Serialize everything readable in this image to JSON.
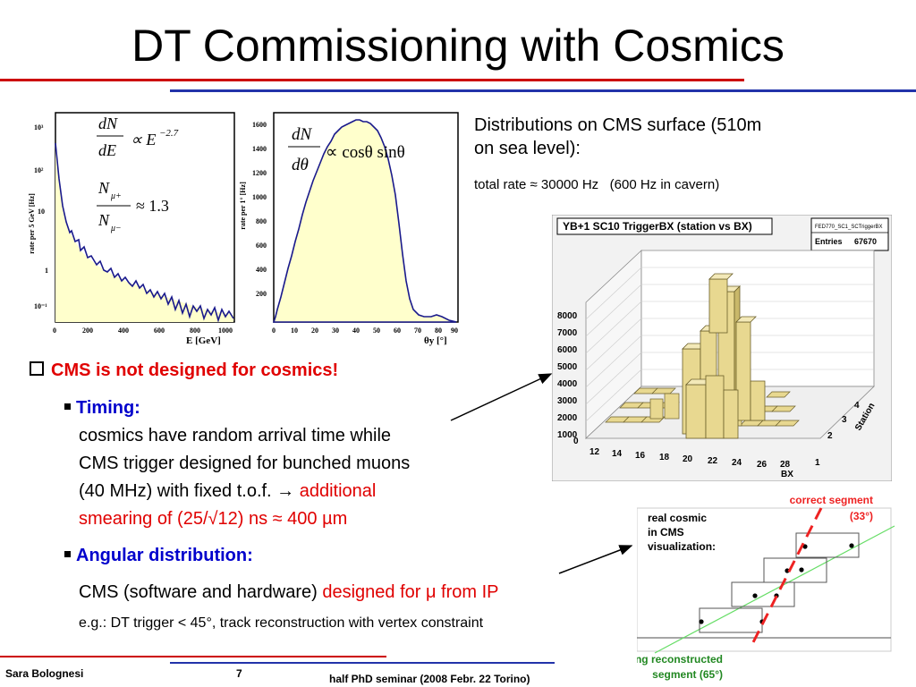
{
  "slide": {
    "title": "DT Commissioning with Cosmics",
    "right_text": {
      "line1": "Distributions on CMS surface (510m",
      "line2": "on sea level):",
      "rate": "total rate ≈ 30000 Hz   (600 Hz in cavern)"
    },
    "bullets": {
      "main": "CMS is not designed for cosmics!",
      "timing_label": "Timing:",
      "timing_lines": [
        "cosmics have random arrival time while",
        "CMS trigger designed for bunched muons",
        "(40 MHz) with fixed t.o.f. → "
      ],
      "timing_red_1": "additional",
      "timing_red_2": "smearing of (25/√12) ns ≈ 400 µm",
      "angular_label": "Angular distribution:",
      "angular_text": "CMS (software and hardware) ",
      "angular_red": "designed for μ from IP",
      "eg": "e.g.: DT trigger < 45°, track reconstruction with vertex constraint"
    },
    "footer": {
      "author": "Sara Bolognesi",
      "page": "7",
      "event": "half PhD seminar (2008 Febr. 22 Torino)"
    },
    "colors": {
      "red_line": "#cc0000",
      "blue_line": "#2233aa",
      "hist_fill": "#ffffcc",
      "hist_line": "#1a1a8c",
      "lego_fill": "#e8d890"
    }
  },
  "energy_hist": {
    "ylabel": "rate per 5 GeV [Hz]",
    "xlabel": "E [GeV]",
    "xticks": [
      "0",
      "200",
      "400",
      "600",
      "800",
      "1000"
    ],
    "yticks": [
      "10³",
      "10²",
      "10",
      "1",
      "10⁻¹"
    ],
    "formula1_lhs_num": "dN",
    "formula1_lhs_den": "dE",
    "formula1_rhs": "∝ E",
    "formula1_exp": "−2.7",
    "formula2_num": "N",
    "formula2_num_sub": "μ+",
    "formula2_den": "N",
    "formula2_den_sub": "μ−",
    "formula2_rhs": "≈ 1.3"
  },
  "angle_hist": {
    "ylabel": "rate per 1° [Hz]",
    "xlabel": "θy [°]",
    "xticks": [
      "0",
      "10",
      "20",
      "30",
      "40",
      "50",
      "60",
      "70",
      "80",
      "90"
    ],
    "yticks": [
      "1600",
      "1400",
      "1200",
      "1000",
      "800",
      "600",
      "400",
      "200"
    ],
    "formula_num": "dN",
    "formula_den": "dθ",
    "formula_rhs": "∝ cosθ sinθ"
  },
  "lego": {
    "title": "YB+1 SC10 TriggerBX (station vs BX)",
    "stats_name": "FED770_SC1_SCTriggerBX",
    "entries_label": "Entries",
    "entries_value": "67670",
    "zticks": [
      "8000",
      "7000",
      "6000",
      "5000",
      "4000",
      "3000",
      "2000",
      "1000",
      "0"
    ],
    "xticks": [
      "12",
      "14",
      "16",
      "18",
      "20",
      "22",
      "24",
      "26",
      "28"
    ],
    "xunit": "BX",
    "yticks": [
      "1",
      "2",
      "3",
      "4"
    ],
    "yunit": "Station"
  },
  "segment_diagram": {
    "correct_label_1": "correct segment",
    "correct_label_2": "(33°)",
    "cosmic_label_1": "real cosmic",
    "cosmic_label_2": "in CMS",
    "cosmic_label_3": "visualization:",
    "wrong_label_1": "wrong reconstructed",
    "wrong_label_2": "segment (65°)"
  }
}
